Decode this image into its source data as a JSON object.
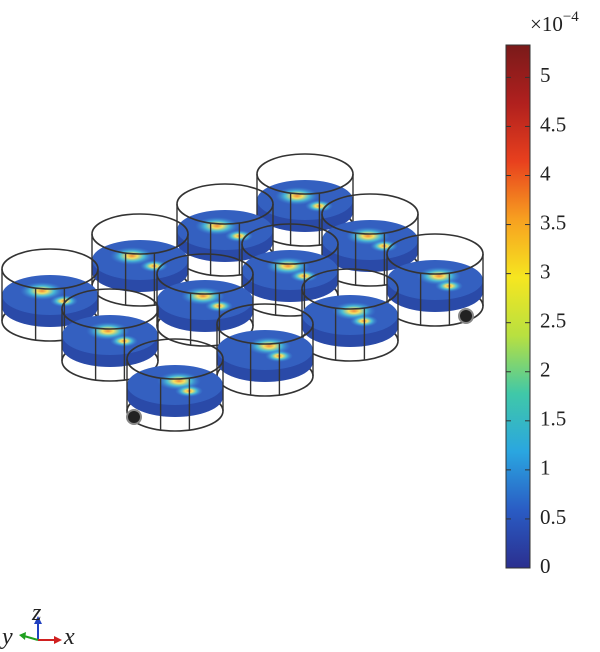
{
  "chart_data": {
    "type": "surface",
    "colorbar": {
      "clim": [
        0,
        5.33
      ],
      "ticks": [
        0,
        0.5,
        1,
        1.5,
        2,
        2.5,
        3,
        3.5,
        4,
        4.5,
        5
      ],
      "multiplier": {
        "base": "×10",
        "exponent": "−4"
      },
      "colormap": [
        "#2b2f8f",
        "#2a5cc4",
        "#2aa6e0",
        "#40c8a8",
        "#b8e040",
        "#f6e620",
        "#f7a020",
        "#e8401e",
        "#b0201e",
        "#7a1a1a"
      ]
    },
    "axes_triad": {
      "z": "z",
      "y": "y",
      "x": "x"
    }
  }
}
